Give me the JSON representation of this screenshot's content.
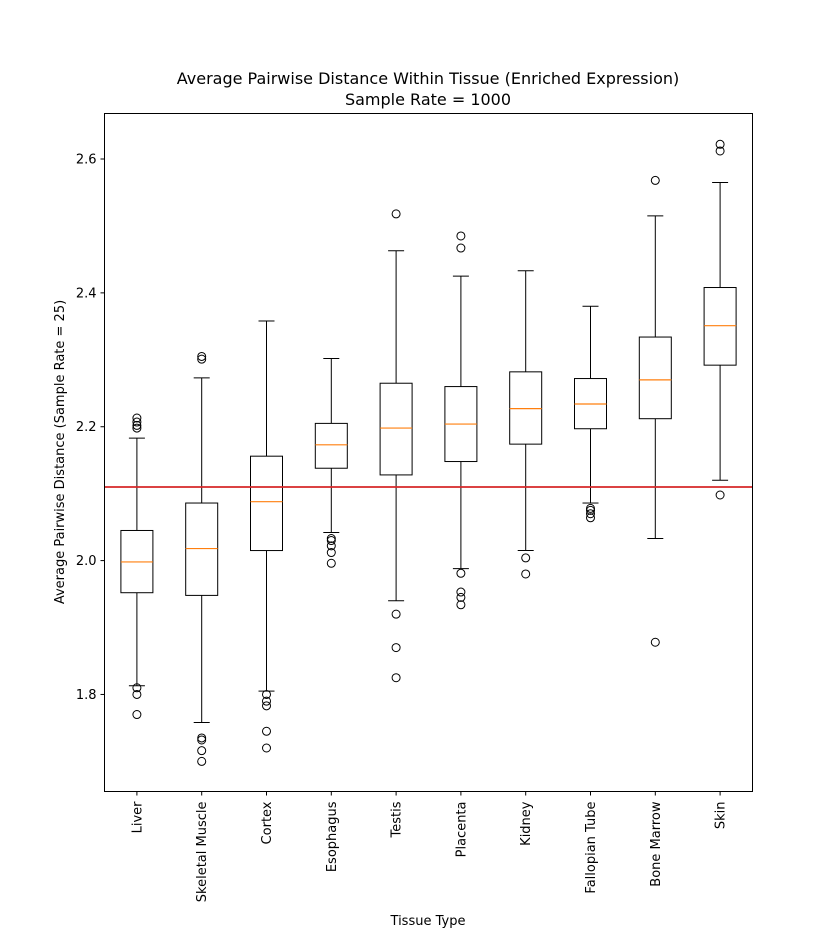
{
  "chart_data": {
    "type": "boxplot",
    "title": "Average Pairwise Distance Within Tissue (Enriched Expression)",
    "subtitle": "Sample Rate = 1000",
    "xlabel": "Tissue Type",
    "ylabel": "Average Pairwise Distance (Sample Rate = 25)",
    "ylim": [
      1.655,
      2.668
    ],
    "yticks": [
      1.8,
      2.0,
      2.2,
      2.4,
      2.6
    ],
    "ytick_labels": [
      "1.8",
      "2.0",
      "2.2",
      "2.4",
      "2.6"
    ],
    "reference_line": {
      "value": 2.11,
      "color": "#d62728"
    },
    "median_color": "#ff7f0e",
    "categories": [
      "Liver",
      "Skeletal Muscle",
      "Cortex",
      "Esophagus",
      "Testis",
      "Placenta",
      "Kidney",
      "Fallopian Tube",
      "Bone Marrow",
      "Skin"
    ],
    "boxes": [
      {
        "name": "Liver",
        "whisker_low": 1.813,
        "q1": 1.952,
        "median": 1.998,
        "q3": 2.045,
        "whisker_high": 2.183,
        "outliers": [
          2.213,
          2.207,
          2.202,
          2.198,
          1.81,
          1.8,
          1.77
        ]
      },
      {
        "name": "Skeletal Muscle",
        "whisker_low": 1.758,
        "q1": 1.948,
        "median": 2.018,
        "q3": 2.086,
        "whisker_high": 2.273,
        "outliers": [
          2.305,
          2.301,
          1.735,
          1.732,
          1.716,
          1.7
        ]
      },
      {
        "name": "Cortex",
        "whisker_low": 1.805,
        "q1": 2.015,
        "median": 2.088,
        "q3": 2.156,
        "whisker_high": 2.358,
        "outliers": [
          1.8,
          1.79,
          1.783,
          1.745,
          1.72
        ]
      },
      {
        "name": "Esophagus",
        "whisker_low": 2.042,
        "q1": 2.138,
        "median": 2.173,
        "q3": 2.205,
        "whisker_high": 2.302,
        "outliers": [
          2.033,
          2.03,
          2.022,
          2.012,
          1.996
        ]
      },
      {
        "name": "Testis",
        "whisker_low": 1.94,
        "q1": 2.128,
        "median": 2.198,
        "q3": 2.265,
        "whisker_high": 2.463,
        "outliers": [
          2.518,
          1.92,
          1.87,
          1.825
        ]
      },
      {
        "name": "Placenta",
        "whisker_low": 1.988,
        "q1": 2.148,
        "median": 2.204,
        "q3": 2.26,
        "whisker_high": 2.425,
        "outliers": [
          2.485,
          2.467,
          1.981,
          1.953,
          1.945,
          1.934
        ]
      },
      {
        "name": "Kidney",
        "whisker_low": 2.015,
        "q1": 2.174,
        "median": 2.227,
        "q3": 2.282,
        "whisker_high": 2.433,
        "outliers": [
          2.004,
          1.98
        ]
      },
      {
        "name": "Fallopian Tube",
        "whisker_low": 2.086,
        "q1": 2.197,
        "median": 2.234,
        "q3": 2.272,
        "whisker_high": 2.38,
        "outliers": [
          2.078,
          2.075,
          2.07,
          2.064
        ]
      },
      {
        "name": "Bone Marrow",
        "whisker_low": 2.033,
        "q1": 2.212,
        "median": 2.27,
        "q3": 2.334,
        "whisker_high": 2.515,
        "outliers": [
          2.568,
          1.878
        ]
      },
      {
        "name": "Skin",
        "whisker_low": 2.12,
        "q1": 2.292,
        "median": 2.351,
        "q3": 2.408,
        "whisker_high": 2.565,
        "outliers": [
          2.622,
          2.612,
          2.098
        ]
      }
    ]
  }
}
